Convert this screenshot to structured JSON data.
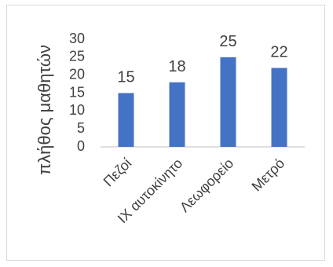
{
  "chart_data": {
    "type": "bar",
    "title": "",
    "xlabel": "",
    "ylabel": "πλήθος μαθητών",
    "categories": [
      "Πεζοί",
      "ΙΧ αυτοκίνητο",
      "Λεωφορείο",
      "Μετρό"
    ],
    "values": [
      15,
      18,
      25,
      22
    ],
    "ylim": [
      0,
      30
    ],
    "yticks": [
      "0",
      "5",
      "10",
      "15",
      "20",
      "25",
      "30"
    ],
    "data_labels": [
      "15",
      "18",
      "25",
      "22"
    ],
    "grid": false,
    "legend": "none",
    "bar_color": "#4472c4"
  }
}
